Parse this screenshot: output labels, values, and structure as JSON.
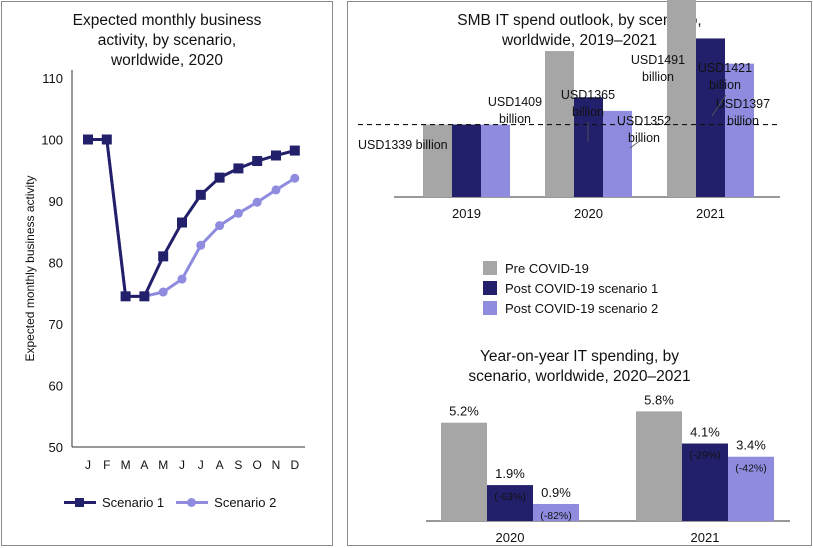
{
  "colors": {
    "pre_covid": "#a6a6a6",
    "scenario_1": "#23206b",
    "scenario_2": "#8f8ce0",
    "yoy_change_text": "#c0004a"
  },
  "left_panel": {
    "title_lines": [
      "Expected monthly business",
      "activity, by scenario,",
      "worldwide, 2020"
    ]
  },
  "right_panel": {
    "top_title_lines": [
      "SMB IT spend outlook, by scenario,",
      "worldwide, 2019–2021"
    ],
    "bottom_title_lines": [
      "Year-on-year IT spending, by",
      "scenario, worldwide, 2020–2021"
    ],
    "legend": [
      "Pre COVID-19",
      "Post COVID-19 scenario 1",
      "Post COVID-19 scenario 2"
    ]
  },
  "chart_data": [
    {
      "type": "line",
      "title": "Expected monthly business activity, by scenario, worldwide, 2020",
      "ylabel": "Expected monthly business activity",
      "xlabel": "",
      "x": [
        "J",
        "F",
        "M",
        "A",
        "M",
        "J",
        "J",
        "A",
        "S",
        "O",
        "N",
        "D"
      ],
      "ylim": [
        50,
        110
      ],
      "yticks": [
        50,
        60,
        70,
        80,
        90,
        100,
        110
      ],
      "grid": false,
      "legend_position": "bottom",
      "series": [
        {
          "name": "Scenario 1",
          "values": [
            100,
            100,
            74.5,
            74.5,
            81,
            86.5,
            91,
            93.8,
            95.3,
            96.5,
            97.4,
            98.2
          ]
        },
        {
          "name": "Scenario 2",
          "values": [
            100,
            100,
            74.5,
            74.5,
            75.2,
            77.3,
            82.8,
            86,
            88,
            89.8,
            91.8,
            93.7
          ]
        }
      ]
    },
    {
      "type": "bar",
      "title": "SMB IT spend outlook, by scenario, worldwide, 2019–2021",
      "categories": [
        "2019",
        "2020",
        "2021"
      ],
      "series": [
        {
          "name": "Pre COVID-19",
          "values": [
            1339,
            1409,
            1491
          ]
        },
        {
          "name": "Post COVID-19 scenario 1",
          "values": [
            1339,
            1365,
            1421
          ]
        },
        {
          "name": "Post COVID-19 scenario 2",
          "values": [
            1339,
            1352,
            1397
          ]
        }
      ],
      "unit": "USD billion",
      "baseline_line": 1339,
      "bar_labels": {
        "2019": "USD1339 billion",
        "2020": [
          "USD1409\nbillion",
          "USD1365\nbillion",
          "USD1352\nbillion"
        ],
        "2021": [
          "USD1491\nbillion",
          "USD1421\nbillion",
          "USD1397\nbillion"
        ]
      }
    },
    {
      "type": "bar",
      "title": "Year-on-year IT spending, by scenario, worldwide, 2020–2021",
      "categories": [
        "2020",
        "2021"
      ],
      "series": [
        {
          "name": "Pre COVID-19",
          "values": [
            5.2,
            5.8
          ],
          "labels": [
            "5.2%",
            "5.8%"
          ]
        },
        {
          "name": "Post COVID-19 scenario 1",
          "values": [
            1.9,
            4.1
          ],
          "labels": [
            "1.9%",
            "4.1%"
          ],
          "change_labels": [
            "(-63%)",
            "(-29%)"
          ]
        },
        {
          "name": "Post COVID-19 scenario 2",
          "values": [
            0.9,
            3.4
          ],
          "labels": [
            "0.9%",
            "3.4%"
          ],
          "change_labels": [
            "(-82%)",
            "(-42%)"
          ]
        }
      ]
    }
  ]
}
